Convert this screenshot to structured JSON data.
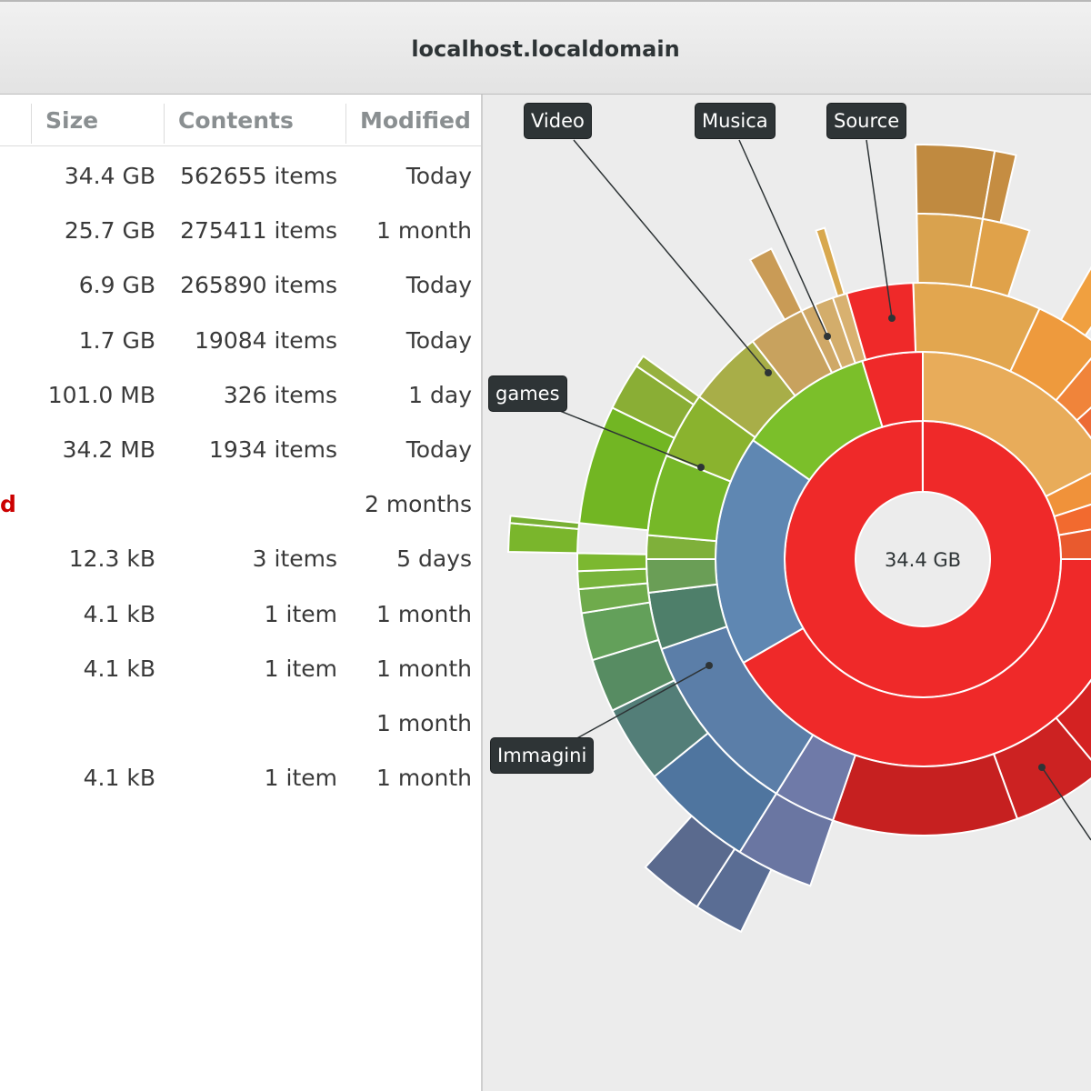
{
  "window": {
    "title": "localhost.localdomain"
  },
  "columns": {
    "size": "Size",
    "contents": "Contents",
    "modified": "Modified"
  },
  "rows": [
    {
      "name": "",
      "size": "34.4 GB",
      "contents": "562655 items",
      "modified": "Today"
    },
    {
      "name": "",
      "size": "25.7 GB",
      "contents": "275411 items",
      "modified": "1 month"
    },
    {
      "name": "",
      "size": "6.9 GB",
      "contents": "265890 items",
      "modified": "Today"
    },
    {
      "name": "",
      "size": "1.7 GB",
      "contents": "19084 items",
      "modified": "Today"
    },
    {
      "name": "",
      "size": "101.0 MB",
      "contents": "326 items",
      "modified": "1 day"
    },
    {
      "name": "",
      "size": "34.2 MB",
      "contents": "1934 items",
      "modified": "Today"
    },
    {
      "name": "d",
      "size": "",
      "contents": "",
      "modified": "2 months"
    },
    {
      "name": "",
      "size": "12.3 kB",
      "contents": "3 items",
      "modified": "5 days"
    },
    {
      "name": "",
      "size": "4.1 kB",
      "contents": "1 item",
      "modified": "1 month"
    },
    {
      "name": "",
      "size": "4.1 kB",
      "contents": "1 item",
      "modified": "1 month"
    },
    {
      "name": "",
      "size": "",
      "contents": "",
      "modified": "1 month"
    },
    {
      "name": "",
      "size": "4.1 kB",
      "contents": "1 item",
      "modified": "1 month"
    }
  ],
  "chart": {
    "center_label": "34.4 GB",
    "tooltips": [
      {
        "id": "video",
        "label": "Video"
      },
      {
        "id": "musica",
        "label": "Musica"
      },
      {
        "id": "source",
        "label": "Source"
      },
      {
        "id": "games",
        "label": "games"
      },
      {
        "id": "immagini",
        "label": "Immagini"
      }
    ],
    "colors": {
      "red": "#ef2929",
      "orange": "#e9b96e",
      "green": "#73d216",
      "blue": "#5c83ad",
      "olive": "#b5b04e"
    }
  }
}
